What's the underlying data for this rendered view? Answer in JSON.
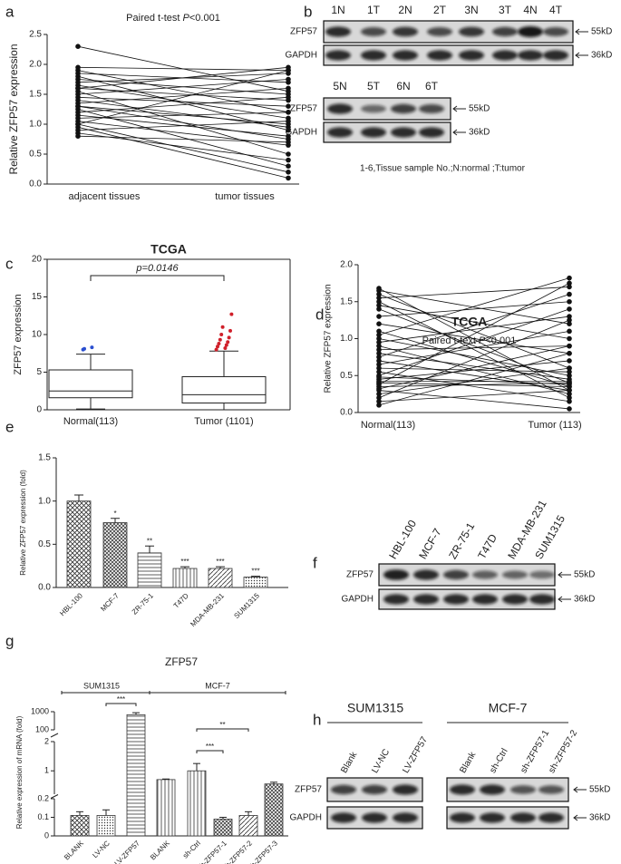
{
  "panel_labels": [
    "a",
    "b",
    "c",
    "d",
    "e",
    "f",
    "g",
    "h"
  ],
  "chart_data": [
    {
      "type": "paired",
      "title": [
        "Paired t-test ",
        "P",
        "<0.001"
      ],
      "ylabel": "Relative ZFP57 expression",
      "categories": [
        "adjacent tissues",
        "tumor tissues"
      ],
      "ylim": [
        0,
        2.5
      ],
      "yticks": [
        {
          "value": 0,
          "label": "0.0"
        },
        0.5,
        {
          "value": 1,
          "label": "1.0"
        },
        1.5,
        {
          "value": 2,
          "label": "2.0"
        },
        2.5
      ],
      "pairs": [
        [
          2.3,
          1.55
        ],
        [
          1.95,
          1.9
        ],
        [
          1.9,
          1.2
        ],
        [
          1.85,
          1.7
        ],
        [
          1.8,
          0.9
        ],
        [
          1.75,
          1.5
        ],
        [
          1.7,
          1.85
        ],
        [
          1.65,
          1.1
        ],
        [
          1.6,
          1.4
        ],
        [
          1.55,
          0.5
        ],
        [
          1.5,
          1.75
        ],
        [
          1.45,
          1.3
        ],
        [
          1.4,
          0.95
        ],
        [
          1.35,
          1.6
        ],
        [
          1.3,
          1.0
        ],
        [
          1.25,
          0.3
        ],
        [
          1.2,
          1.45
        ],
        [
          1.15,
          0.8
        ],
        [
          1.1,
          1.2
        ],
        [
          1.05,
          0.65
        ],
        [
          1.0,
          1.9
        ],
        [
          0.95,
          0.1
        ],
        [
          0.9,
          1.05
        ],
        [
          0.85,
          0.4
        ],
        [
          0.8,
          0.7
        ],
        [
          1.0,
          0.2
        ],
        [
          1.6,
          1.95
        ],
        [
          1.3,
          0.75
        ]
      ]
    },
    {
      "type": "box",
      "title": "TCGA",
      "ylabel": "ZFP57 expression",
      "annotation": "p=0.0146",
      "categories": [
        "Normal(113)",
        "Tumor (1101)"
      ],
      "ylim": [
        0,
        20
      ],
      "yticks": [
        0,
        5,
        10,
        15,
        20
      ],
      "flier_colors": [
        "#2a4fd0",
        "#d0202a"
      ],
      "boxes": [
        {
          "whislo": 0.1,
          "q1": 1.6,
          "med": 2.5,
          "q3": 5.3,
          "whishi": 7.4,
          "fliers": [
            8.0,
            8.3,
            8.1
          ]
        },
        {
          "whislo": 0,
          "q1": 0.9,
          "med": 2.0,
          "q3": 4.4,
          "whishi": 7.8,
          "fliers": [
            8.0,
            8.2,
            8.4,
            8.6,
            8.8,
            9.0,
            9.3,
            9.6,
            10.0,
            10.5,
            11.0,
            12.7
          ]
        }
      ]
    },
    {
      "type": "paired",
      "title": "TCGA",
      "subtitle": [
        "Paired t-text ",
        "P",
        "<0.001"
      ],
      "ylabel": "Relative ZFP57 expression",
      "categories": [
        "Normal(113)",
        "Tumor (113)"
      ],
      "ylim": [
        0,
        2
      ],
      "yticks": [
        {
          "value": 0,
          "label": "0.0"
        },
        0.5,
        {
          "value": 1,
          "label": "1.0"
        },
        1.5,
        {
          "value": 2,
          "label": "2.0"
        }
      ],
      "pairs": [
        [
          1.68,
          0.3
        ],
        [
          1.65,
          1.2
        ],
        [
          1.6,
          0.6
        ],
        [
          1.55,
          1.7
        ],
        [
          1.5,
          0.2
        ],
        [
          1.45,
          1.0
        ],
        [
          1.4,
          0.4
        ],
        [
          1.3,
          1.5
        ],
        [
          1.2,
          0.8
        ],
        [
          1.1,
          0.35
        ],
        [
          1.05,
          1.82
        ],
        [
          1.0,
          0.5
        ],
        [
          0.95,
          1.3
        ],
        [
          0.9,
          0.25
        ],
        [
          0.85,
          0.9
        ],
        [
          0.8,
          0.45
        ],
        [
          0.75,
          1.6
        ],
        [
          0.7,
          0.3
        ],
        [
          0.65,
          1.1
        ],
        [
          0.6,
          0.55
        ],
        [
          0.55,
          0.15
        ],
        [
          0.5,
          1.4
        ],
        [
          0.45,
          0.7
        ],
        [
          0.4,
          0.35
        ],
        [
          0.38,
          1.75
        ],
        [
          0.35,
          0.4
        ],
        [
          0.32,
          0.9
        ],
        [
          0.3,
          0.05
        ],
        [
          0.25,
          0.6
        ],
        [
          0.2,
          1.25
        ],
        [
          0.15,
          0.3
        ],
        [
          0.1,
          0.8
        ],
        [
          0.42,
          0.42
        ],
        [
          0.48,
          0.38
        ]
      ]
    },
    {
      "type": "bar",
      "ylabel": "Relative ZFP57 expression  (fold)",
      "categories": [
        "HBL-100",
        "MCF-7",
        "ZR-75-1",
        "T47D",
        "MDA-MB-231",
        "SUM1315"
      ],
      "values": [
        1.0,
        0.75,
        0.4,
        0.22,
        0.22,
        0.12
      ],
      "errors": [
        0.07,
        0.05,
        0.08,
        0.02,
        0.02,
        0.01
      ],
      "sig": [
        null,
        "*",
        "**",
        "***",
        "***",
        "***"
      ],
      "ylim": [
        0,
        1.5
      ],
      "yticks": [
        {
          "value": 0,
          "label": "0.0"
        },
        0.5,
        {
          "value": 1,
          "label": "1.0"
        },
        1.5
      ]
    },
    {
      "type": "broken_bar",
      "title": "ZFP57",
      "ylabel": "Relative expression of mRNA (fold)",
      "groups": [
        "SUM1315",
        "MCF-7"
      ],
      "brackets": [
        "***",
        "***",
        "**"
      ],
      "categories": [
        "BLANK",
        "LV-NC",
        "LV-ZFP57",
        "BLANK",
        "sh-Ctrl",
        "sh-ZFP57-1",
        "sh-ZFP57-2",
        "sh-ZFP57-3"
      ],
      "values": [
        0.11,
        0.11,
        850,
        0.7,
        1.0,
        0.09,
        0.11,
        0.55
      ],
      "errors": [
        0.02,
        0.03,
        100,
        0.02,
        0.25,
        0.01,
        0.02,
        0.06
      ],
      "ysegments": [
        [
          0,
          0.2
        ],
        [
          0.2,
          2
        ],
        [
          100,
          1000
        ]
      ],
      "yticks": [
        0,
        0.1,
        0.2,
        1,
        2,
        100,
        1000
      ]
    }
  ],
  "blots": {
    "b": {
      "lanes": [
        "1N",
        "1T",
        "2N",
        "2T",
        "3N",
        "3T",
        "4N",
        "4T"
      ],
      "lanes2": [
        "5N",
        "5T",
        "6N",
        "6T"
      ],
      "rows": [
        "ZFP57",
        "GAPDH"
      ],
      "markers": [
        "55kD",
        "36kD"
      ],
      "caption": "1-6,Tissue sample No.;N:normal ;T:tumor"
    },
    "f": {
      "lanes": [
        "HBL-100",
        "MCF-7",
        "ZR-75-1",
        "T47D",
        "MDA-MB-231",
        "SUM1315"
      ],
      "rows": [
        "ZFP57",
        "GAPDH"
      ],
      "markers": [
        "55kD",
        "36kD"
      ]
    },
    "h": {
      "groups": [
        "SUM1315",
        "MCF-7"
      ],
      "lanes": [
        "Blank",
        "LV-NC",
        "LV-ZFP57"
      ],
      "lanes2": [
        "Blank",
        "sh-Ctrl",
        "sh-ZFP57-1",
        "sh-ZFP57-2"
      ],
      "rows": [
        "ZFP57",
        "GAPDH"
      ],
      "markers": [
        "55kD",
        "36kD"
      ]
    }
  }
}
